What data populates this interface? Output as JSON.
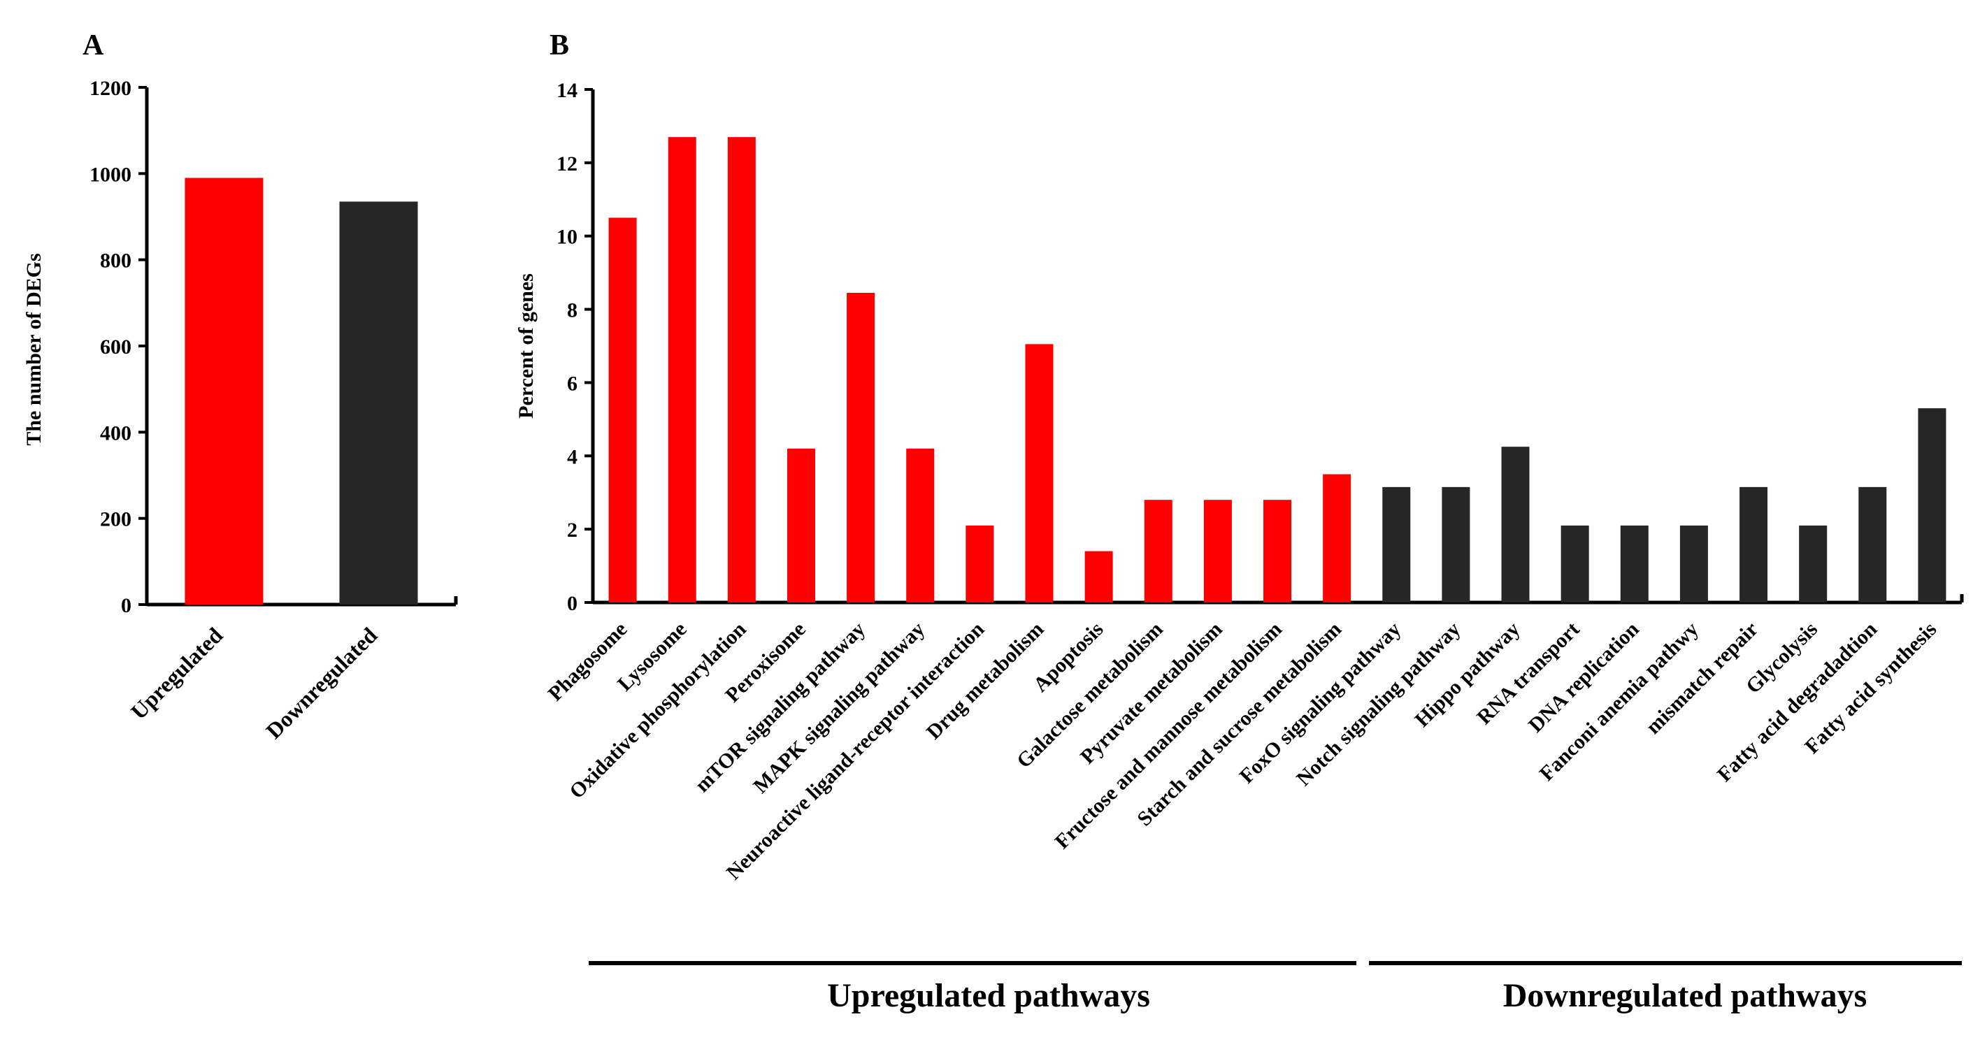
{
  "panels": {
    "a_label": "A",
    "b_label": "B"
  },
  "colors": {
    "up": "#ff0000",
    "down": "#262626",
    "axis": "#000000"
  },
  "group_labels": {
    "up": "Upregulated pathways",
    "down": "Downregulated pathways"
  },
  "chart_data": [
    {
      "type": "bar",
      "panel": "A",
      "title": "",
      "xlabel": "",
      "ylabel": "The number of DEGs",
      "ylim": [
        0,
        1200
      ],
      "yticks": [
        0,
        200,
        400,
        600,
        800,
        1000,
        1200
      ],
      "categories": [
        "Upregulated",
        "Downregulated"
      ],
      "values": [
        990,
        935
      ],
      "bar_colors": [
        "#ff0000",
        "#262626"
      ],
      "grid": false
    },
    {
      "type": "bar",
      "panel": "B",
      "title": "",
      "xlabel": "",
      "ylabel": "Percent of genes",
      "ylim": [
        0,
        14
      ],
      "yticks": [
        0,
        2,
        4,
        6,
        8,
        10,
        12,
        14
      ],
      "categories": [
        "Phagosome",
        "Lysosome",
        "Oxidative phosphorylation",
        "Peroxisome",
        "mTOR signaling pathway",
        "MAPK signaling pathway",
        "Neuroactive ligand-receptor interaction",
        "Drug metabolism",
        "Apoptosis",
        "Galactose metabolism",
        "Pyruvate metabolism",
        "Fructose and mannose metabolism",
        "Starch and sucrose metabolism",
        "FoxO signaling pathway",
        "Notch signaling pathway",
        "Hippo pathway",
        "RNA transport",
        "DNA replication",
        "Fanconi anemia pathwy",
        "mismatch repair",
        "Glycolysis",
        "Fatty acid degradadtion",
        "Fatty acid synthesis"
      ],
      "values": [
        10.5,
        12.7,
        12.7,
        4.2,
        8.45,
        4.2,
        2.1,
        7.05,
        1.4,
        2.8,
        2.8,
        2.8,
        3.5,
        3.15,
        3.15,
        4.25,
        2.1,
        2.1,
        2.1,
        3.15,
        2.1,
        3.15,
        5.3
      ],
      "groups": [
        "up",
        "up",
        "up",
        "up",
        "up",
        "up",
        "up",
        "up",
        "up",
        "up",
        "up",
        "up",
        "up",
        "down",
        "down",
        "down",
        "down",
        "down",
        "down",
        "down",
        "down",
        "down",
        "down"
      ],
      "grid": false
    }
  ]
}
